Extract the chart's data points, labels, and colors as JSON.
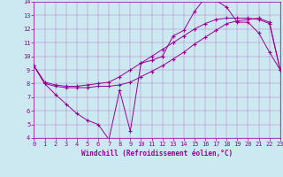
{
  "xlabel": "Windchill (Refroidissement éolien,°C)",
  "xlim": [
    0,
    23
  ],
  "ylim": [
    4,
    14
  ],
  "xticks": [
    0,
    1,
    2,
    3,
    4,
    5,
    6,
    7,
    8,
    9,
    10,
    11,
    12,
    13,
    14,
    15,
    16,
    17,
    18,
    19,
    20,
    21,
    22,
    23
  ],
  "yticks": [
    4,
    5,
    6,
    7,
    8,
    9,
    10,
    11,
    12,
    13,
    14
  ],
  "bg_color": "#cce8f0",
  "line_color": "#990099",
  "lines": [
    {
      "x": [
        0,
        1,
        2,
        3,
        4,
        5,
        6,
        7,
        8,
        9,
        10,
        11,
        12,
        13,
        14,
        15,
        16,
        17,
        18,
        19,
        20,
        21,
        22,
        23
      ],
      "y": [
        9.3,
        8.0,
        7.2,
        6.5,
        5.8,
        5.3,
        5.0,
        3.9,
        7.5,
        4.5,
        9.5,
        9.7,
        10.0,
        11.5,
        11.9,
        13.3,
        14.3,
        14.1,
        13.6,
        12.5,
        12.5,
        11.7,
        10.3,
        9.0
      ]
    },
    {
      "x": [
        0,
        1,
        2,
        3,
        4,
        5,
        6,
        7,
        8,
        9,
        10,
        11,
        12,
        13,
        14,
        15,
        16,
        17,
        18,
        19,
        20,
        21,
        22,
        23
      ],
      "y": [
        9.3,
        8.0,
        7.8,
        7.7,
        7.7,
        7.7,
        7.8,
        7.8,
        7.9,
        8.1,
        8.5,
        8.9,
        9.3,
        9.8,
        10.3,
        10.9,
        11.4,
        11.9,
        12.4,
        12.6,
        12.7,
        12.8,
        12.5,
        9.0
      ]
    },
    {
      "x": [
        0,
        1,
        2,
        3,
        4,
        5,
        6,
        7,
        8,
        9,
        10,
        11,
        12,
        13,
        14,
        15,
        16,
        17,
        18,
        19,
        20,
        21,
        22,
        23
      ],
      "y": [
        9.3,
        8.1,
        7.9,
        7.8,
        7.8,
        7.9,
        8.0,
        8.1,
        8.5,
        9.0,
        9.5,
        10.0,
        10.5,
        11.0,
        11.5,
        12.0,
        12.4,
        12.7,
        12.8,
        12.8,
        12.8,
        12.7,
        12.4,
        9.0
      ]
    }
  ]
}
